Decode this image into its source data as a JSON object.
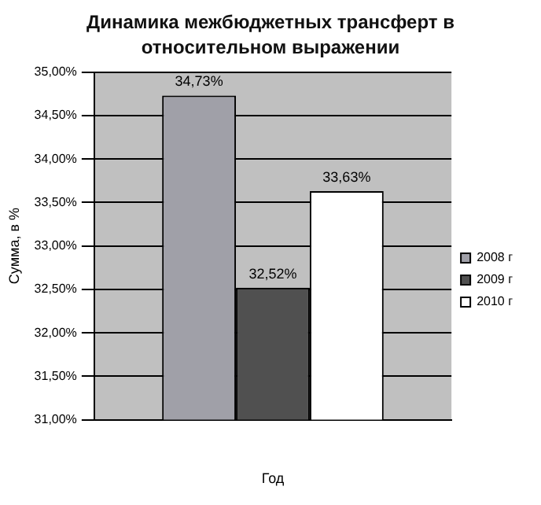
{
  "chart_data": {
    "type": "bar",
    "title": "Динамика  межбюджетных трансферт в относительном выражении",
    "xlabel": "Год",
    "ylabel": "Сумма, в %",
    "categories": [
      null
    ],
    "series": [
      {
        "name": "2008 г",
        "color": "#a0a0a8",
        "values": [
          34.73
        ],
        "value_labels": [
          "34,73%"
        ]
      },
      {
        "name": "2009 г",
        "color": "#505050",
        "values": [
          32.52
        ],
        "value_labels": [
          "32,52%"
        ]
      },
      {
        "name": "2010 г",
        "color": "#ffffff",
        "values": [
          33.63
        ],
        "value_labels": [
          "33,63%"
        ]
      }
    ],
    "ylim": [
      31,
      35
    ],
    "yticks": [
      {
        "value": 31,
        "label": "31,00%"
      },
      {
        "value": 31.5,
        "label": "31,50%"
      },
      {
        "value": 32,
        "label": "32,00%"
      },
      {
        "value": 32.5,
        "label": "32,50%"
      },
      {
        "value": 33,
        "label": "33,00%"
      },
      {
        "value": 33.5,
        "label": "33,50%"
      },
      {
        "value": 34,
        "label": "34,00%"
      },
      {
        "value": 34.5,
        "label": "34,50%"
      },
      {
        "value": 35,
        "label": "35,00%"
      }
    ],
    "grid": "y",
    "legend": "right"
  }
}
